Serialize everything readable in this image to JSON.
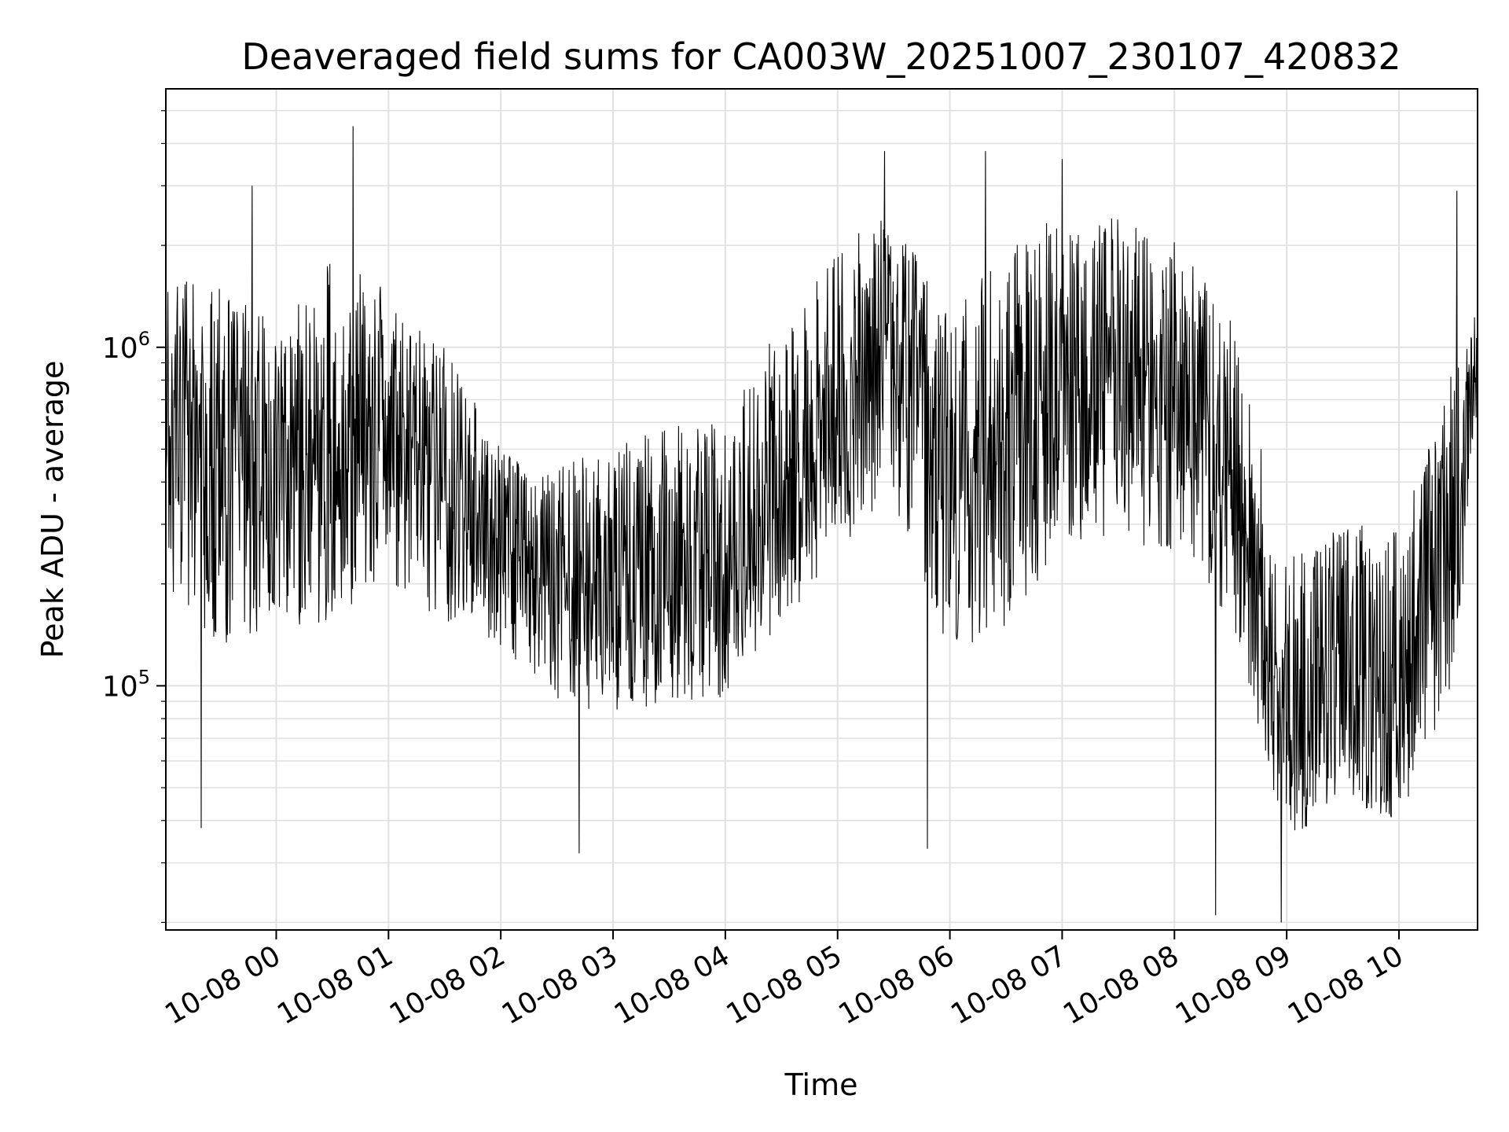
{
  "chart_data": {
    "type": "line",
    "title": "Deaveraged field sums for CA003W_20251007_230107_420832",
    "xlabel": "Time",
    "ylabel": "Peak ADU - average",
    "y_scale": "log",
    "ylim": [
      19000,
      5800000
    ],
    "xlim": [
      "2025-10-07 23:01",
      "2025-10-08 10:42"
    ],
    "grid": true,
    "line_color": "#000000",
    "grid_color": "#e0e0e0",
    "x_ticks": [
      {
        "x": "2025-10-08 00:00",
        "label": "10-08 00"
      },
      {
        "x": "2025-10-08 01:00",
        "label": "10-08 01"
      },
      {
        "x": "2025-10-08 02:00",
        "label": "10-08 02"
      },
      {
        "x": "2025-10-08 03:00",
        "label": "10-08 03"
      },
      {
        "x": "2025-10-08 04:00",
        "label": "10-08 04"
      },
      {
        "x": "2025-10-08 05:00",
        "label": "10-08 05"
      },
      {
        "x": "2025-10-08 06:00",
        "label": "10-08 06"
      },
      {
        "x": "2025-10-08 07:00",
        "label": "10-08 07"
      },
      {
        "x": "2025-10-08 08:00",
        "label": "10-08 08"
      },
      {
        "x": "2025-10-08 09:00",
        "label": "10-08 09"
      },
      {
        "x": "2025-10-08 10:00",
        "label": "10-08 10"
      }
    ],
    "y_ticks": [
      {
        "value": 100000,
        "base": "10",
        "exp": "5"
      },
      {
        "value": 1000000,
        "base": "10",
        "exp": "6"
      }
    ],
    "series": [
      {
        "values_x": [
          "2025-10-07 23:01",
          "2025-10-07 23:30",
          "2025-10-08 00:00",
          "2025-10-08 00:30",
          "2025-10-08 01:00",
          "2025-10-08 01:30",
          "2025-10-08 02:00",
          "2025-10-08 02:30",
          "2025-10-08 03:00",
          "2025-10-08 03:30",
          "2025-10-08 04:00",
          "2025-10-08 04:30",
          "2025-10-08 05:00",
          "2025-10-08 05:30",
          "2025-10-08 06:00",
          "2025-10-08 06:30",
          "2025-10-08 07:00",
          "2025-10-08 07:30",
          "2025-10-08 08:00",
          "2025-10-08 08:30",
          "2025-10-08 09:00",
          "2025-10-08 09:30",
          "2025-10-08 10:00",
          "2025-10-08 10:30",
          "2025-10-08 10:42"
        ],
        "values_y": [
          600000,
          550000,
          450000,
          550000,
          550000,
          380000,
          240000,
          200000,
          200000,
          260000,
          220000,
          380000,
          650000,
          1000000,
          350000,
          500000,
          700000,
          800000,
          750000,
          500000,
          70000,
          110000,
          90000,
          400000,
          900000
        ],
        "band_low": [
          200000,
          120000,
          150000,
          150000,
          200000,
          150000,
          130000,
          90000,
          80000,
          90000,
          90000,
          150000,
          250000,
          350000,
          120000,
          150000,
          250000,
          250000,
          250000,
          150000,
          35000,
          45000,
          40000,
          100000,
          700000
        ],
        "band_high": [
          1800000,
          1500000,
          1200000,
          1800000,
          1500000,
          1000000,
          500000,
          450000,
          500000,
          600000,
          600000,
          1200000,
          2000000,
          2500000,
          1200000,
          2000000,
          2500000,
          2500000,
          2200000,
          1200000,
          250000,
          300000,
          300000,
          900000,
          1300000
        ]
      }
    ],
    "extremes": [
      {
        "x": "2025-10-07 23:47",
        "y": 3000000
      },
      {
        "x": "2025-10-08 00:41",
        "y": 4500000
      },
      {
        "x": "2025-10-08 05:25",
        "y": 3800000
      },
      {
        "x": "2025-10-08 06:19",
        "y": 3800000
      },
      {
        "x": "2025-10-08 07:00",
        "y": 3600000
      },
      {
        "x": "2025-10-08 08:22",
        "y": 21000
      },
      {
        "x": "2025-10-08 08:57",
        "y": 20000
      },
      {
        "x": "2025-10-08 10:31",
        "y": 2900000
      },
      {
        "x": "2025-10-08 02:42",
        "y": 32000
      },
      {
        "x": "2025-10-07 23:20",
        "y": 38000
      },
      {
        "x": "2025-10-08 05:48",
        "y": 33000
      }
    ]
  }
}
